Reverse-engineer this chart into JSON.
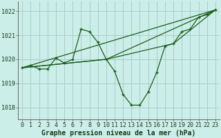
{
  "title": "Graphe pression niveau de la mer (hPa)",
  "bg_color": "#cceee8",
  "grid_color": "#aacccc",
  "line_color": "#1a5c1a",
  "xlim": [
    -0.5,
    23.5
  ],
  "ylim": [
    1017.5,
    1022.4
  ],
  "yticks": [
    1018,
    1019,
    1020,
    1021,
    1022
  ],
  "xticks": [
    0,
    1,
    2,
    3,
    4,
    5,
    6,
    7,
    8,
    9,
    10,
    11,
    12,
    13,
    14,
    15,
    16,
    17,
    18,
    19,
    20,
    21,
    22,
    23
  ],
  "main_x": [
    0,
    1,
    2,
    3,
    4,
    5,
    6,
    7,
    8,
    9,
    10,
    11,
    12,
    13,
    14,
    15,
    16,
    17,
    18,
    19,
    20,
    21,
    22,
    23
  ],
  "main_y": [
    1019.65,
    1019.75,
    1019.6,
    1019.6,
    1020.05,
    1019.85,
    1020.0,
    1021.25,
    1021.15,
    1020.7,
    1020.0,
    1019.5,
    1018.55,
    1018.1,
    1018.1,
    1018.65,
    1019.45,
    1020.55,
    1020.65,
    1021.15,
    1021.25,
    1021.75,
    1021.85,
    1022.05
  ],
  "trend1_x": [
    0,
    23
  ],
  "trend1_y": [
    1019.65,
    1022.05
  ],
  "trend2_x": [
    0,
    10,
    23
  ],
  "trend2_y": [
    1019.65,
    1020.0,
    1022.05
  ],
  "trend3_x": [
    0,
    10,
    18,
    23
  ],
  "trend3_y": [
    1019.65,
    1020.0,
    1020.65,
    1022.05
  ],
  "ylabel_fontsize": 7,
  "tick_fontsize": 6
}
